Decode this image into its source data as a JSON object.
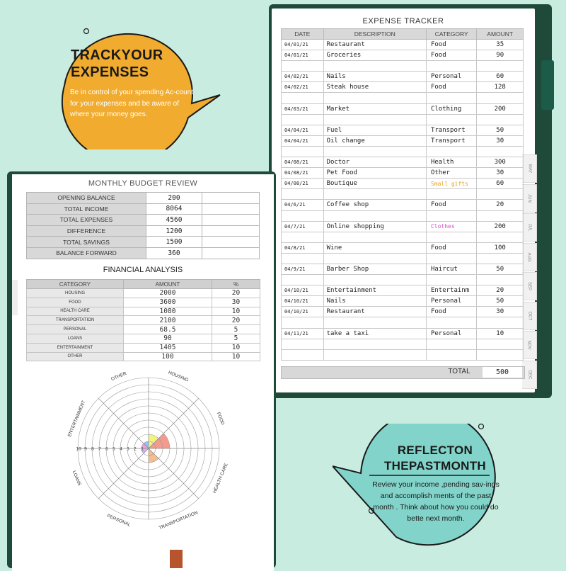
{
  "expense_tracker": {
    "title": "EXPENSE TRACKER",
    "headers": [
      "DATE",
      "DESCRIPTION",
      "CATEGORY",
      "AMOUNT"
    ],
    "rows": [
      {
        "date": "04/01/21",
        "desc": "Restaurant",
        "cat": "Food",
        "amt": "35",
        "cat_color": ""
      },
      {
        "date": "04/01/21",
        "desc": "Groceries",
        "cat": "Food",
        "amt": "90",
        "cat_color": ""
      },
      {
        "date": "",
        "desc": "",
        "cat": "",
        "amt": "",
        "cat_color": ""
      },
      {
        "date": "04/02/21",
        "desc": "Nails",
        "cat": "Personal",
        "amt": "60",
        "cat_color": ""
      },
      {
        "date": "04/02/21",
        "desc": "Steak house",
        "cat": "Food",
        "amt": "128",
        "cat_color": ""
      },
      {
        "date": "",
        "desc": "",
        "cat": "",
        "amt": "",
        "cat_color": ""
      },
      {
        "date": "04/03/21",
        "desc": "Market",
        "cat": "Clothing",
        "amt": "200",
        "cat_color": ""
      },
      {
        "date": "",
        "desc": "",
        "cat": "",
        "amt": "",
        "cat_color": ""
      },
      {
        "date": "04/04/21",
        "desc": "Fuel",
        "cat": "Transport",
        "amt": "50",
        "cat_color": ""
      },
      {
        "date": "04/04/21",
        "desc": "Oil change",
        "cat": "Transport",
        "amt": "30",
        "cat_color": ""
      },
      {
        "date": "",
        "desc": "",
        "cat": "",
        "amt": "",
        "cat_color": ""
      },
      {
        "date": "04/08/21",
        "desc": "Doctor",
        "cat": "Health",
        "amt": "300",
        "cat_color": ""
      },
      {
        "date": "04/08/21",
        "desc": "Pet Food",
        "cat": "Other",
        "amt": "30",
        "cat_color": ""
      },
      {
        "date": "04/08/21",
        "desc": "Boutique",
        "cat": "Small gifts",
        "amt": "60",
        "cat_color": "#e6a21f"
      },
      {
        "date": "",
        "desc": "",
        "cat": "",
        "amt": "",
        "cat_color": ""
      },
      {
        "date": "04/6/21",
        "desc": "Coffee shop",
        "cat": "Food",
        "amt": "20",
        "cat_color": ""
      },
      {
        "date": "",
        "desc": "",
        "cat": "",
        "amt": "",
        "cat_color": ""
      },
      {
        "date": "04/7/21",
        "desc": "Online shopping",
        "cat": "Clothes",
        "amt": "200",
        "cat_color": "#d24fd0"
      },
      {
        "date": "",
        "desc": "",
        "cat": "",
        "amt": "",
        "cat_color": ""
      },
      {
        "date": "04/8/21",
        "desc": "Wine",
        "cat": "Food",
        "amt": "100",
        "cat_color": ""
      },
      {
        "date": "",
        "desc": "",
        "cat": "",
        "amt": "",
        "cat_color": ""
      },
      {
        "date": "04/9/21",
        "desc": "Barber Shop",
        "cat": "Haircut",
        "amt": "50",
        "cat_color": ""
      },
      {
        "date": "",
        "desc": "",
        "cat": "",
        "amt": "",
        "cat_color": ""
      },
      {
        "date": "04/10/21",
        "desc": "Entertainment",
        "cat": "Entertainm",
        "amt": "20",
        "cat_color": ""
      },
      {
        "date": "04/10/21",
        "desc": "Nails",
        "cat": "Personal",
        "amt": "50",
        "cat_color": ""
      },
      {
        "date": "04/10/21",
        "desc": "Restaurant",
        "cat": "Food",
        "amt": "30",
        "cat_color": ""
      },
      {
        "date": "",
        "desc": "",
        "cat": "",
        "amt": "",
        "cat_color": ""
      },
      {
        "date": "04/11/21",
        "desc": "take a taxi",
        "cat": "Personal",
        "amt": "10",
        "cat_color": ""
      },
      {
        "date": "",
        "desc": "",
        "cat": "",
        "amt": "",
        "cat_color": ""
      },
      {
        "date": "",
        "desc": "",
        "cat": "",
        "amt": "",
        "cat_color": ""
      }
    ],
    "total_label": "TOTAL",
    "total_value": "500",
    "month_tabs": [
      "MAY",
      "JUN",
      "JUL",
      "AUG",
      "SEP",
      "OCT",
      "NOV",
      "DEC"
    ]
  },
  "monthly_budget": {
    "title": "MONTHLY BUDGET REVIEW",
    "rows": [
      {
        "label": "OPENING BALANCE",
        "value": "200"
      },
      {
        "label": "TOTAL INCOME",
        "value": "8064"
      },
      {
        "label": "TOTAL EXPENSES",
        "value": "4560"
      },
      {
        "label": "DIFFERENCE",
        "value": "1200"
      },
      {
        "label": "TOTAL SAVINGS",
        "value": "1500"
      },
      {
        "label": "BALANCE FORWARD",
        "value": "360"
      }
    ]
  },
  "financial_analysis": {
    "title": "FINANCIAL ANALYSIS",
    "headers": [
      "CATEGORY",
      "AMOUNT",
      "%"
    ],
    "rows": [
      {
        "category": "HOUSING",
        "amount": "2000",
        "pct": "20"
      },
      {
        "category": "FOOD",
        "amount": "3600",
        "pct": "30"
      },
      {
        "category": "HEALTH CARE",
        "amount": "1080",
        "pct": "10"
      },
      {
        "category": "TRANSPORTATION",
        "amount": "2100",
        "pct": "20"
      },
      {
        "category": "PERSONAL",
        "amount": "68.5",
        "pct": "5"
      },
      {
        "category": "LOANS",
        "amount": "90",
        "pct": "5"
      },
      {
        "category": "ENTERTAINMENT",
        "amount": "1405",
        "pct": "10"
      },
      {
        "category": "OTHER",
        "amount": "100",
        "pct": "10"
      }
    ]
  },
  "chart_data": {
    "type": "radar",
    "categories": [
      "HOUSING",
      "FOOD",
      "HEALTH CARE",
      "TRANSPORTATION",
      "PERSONAL",
      "LOANS",
      "ENTERTAINMENT",
      "OTHER"
    ],
    "values": [
      2,
      3,
      0,
      2,
      0,
      1,
      1,
      1
    ],
    "colors": [
      "#f2ef6a",
      "#f28a7a",
      "#ffffff",
      "#f5b27a",
      "#ffffff",
      "#c9a6f2",
      "#f28ad8",
      "#7ab8f2"
    ],
    "scale_labels": [
      "10",
      "9",
      "8",
      "7",
      "6",
      "5",
      "4",
      "3",
      "2",
      "1"
    ],
    "rings": 10
  },
  "bubble_track": {
    "heading": "TRACKYOUR EXPENSES",
    "body": "Be in control of your spending Ac-count for your expenses and be aware of where your money goes.",
    "color": "#f1ac2f"
  },
  "bubble_reflect": {
    "heading": "REFLECTON THEPASTMONTH",
    "body": "Review your income ,pending sav-ings and accomplish ments of the past month . Think about how you could do bette next month.",
    "color": "#82d3c9"
  }
}
